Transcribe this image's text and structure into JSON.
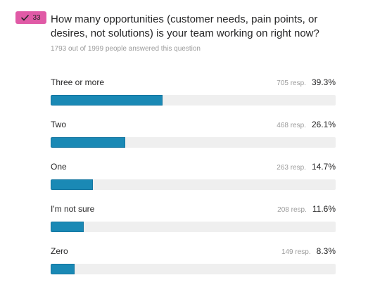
{
  "badge": {
    "number": "33",
    "icon": "checkmark-icon",
    "color": "#e05aa6"
  },
  "question": {
    "text": "How many opportunities (customer needs, pain points, or desires, not solutions) is your team working on right now?",
    "meta": "1793 out of 1999 people answered this question"
  },
  "colors": {
    "bar": "#1a89b5",
    "track": "#efefef"
  },
  "options": [
    {
      "label": "Three or more",
      "responses": "705 resp.",
      "percent": "39.3%",
      "value": 39.3
    },
    {
      "label": "Two",
      "responses": "468 resp.",
      "percent": "26.1%",
      "value": 26.1
    },
    {
      "label": "One",
      "responses": "263 resp.",
      "percent": "14.7%",
      "value": 14.7
    },
    {
      "label": "I'm not sure",
      "responses": "208 resp.",
      "percent": "11.6%",
      "value": 11.6
    },
    {
      "label": "Zero",
      "responses": "149 resp.",
      "percent": "8.3%",
      "value": 8.3
    }
  ]
}
